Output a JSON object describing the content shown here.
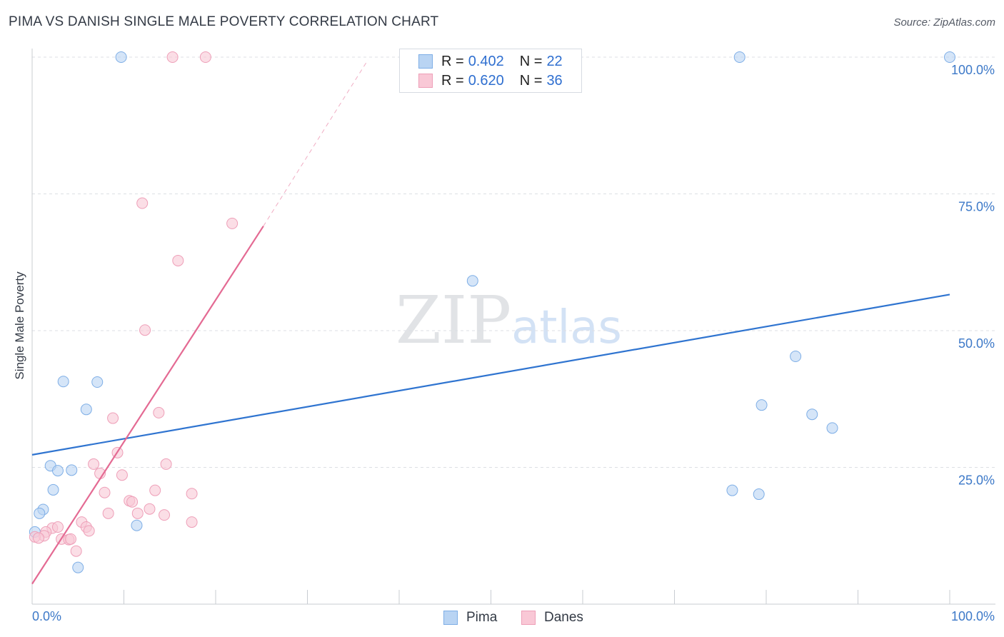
{
  "title": "PIMA VS DANISH SINGLE MALE POVERTY CORRELATION CHART",
  "source": "Source: ZipAtlas.com",
  "watermark": {
    "zip": "ZIP",
    "atlas": "atlas"
  },
  "colors": {
    "pima_fill": "#b9d4f3",
    "pima_stroke": "#7eaee6",
    "pima_line": "#2f74d0",
    "danes_fill": "#f9c8d6",
    "danes_stroke": "#ee9fb8",
    "danes_line": "#e46a93",
    "tick_label": "#3d79c8",
    "grid": "#dcdfe4"
  },
  "legend": {
    "rows": [
      {
        "r_label": "R =",
        "r_value": "0.402",
        "n_label": "N =",
        "n_value": "22"
      },
      {
        "r_label": "R =",
        "r_value": "0.620",
        "n_label": "N =",
        "n_value": "36"
      }
    ]
  },
  "bottom_legend": [
    "Pima",
    "Danes"
  ],
  "chart_data": {
    "type": "scatter",
    "title": "PIMA VS DANISH SINGLE MALE POVERTY CORRELATION CHART",
    "xlabel": "",
    "ylabel": "Single Male Poverty",
    "xlim": [
      0,
      100
    ],
    "ylim": [
      0,
      100
    ],
    "x_tick_labels": [
      "0.0%",
      "100.0%"
    ],
    "y_tick_labels": [
      "25.0%",
      "50.0%",
      "75.0%",
      "100.0%"
    ],
    "y_tick_values": [
      25,
      50,
      75,
      100
    ],
    "grid": true,
    "legend_position": "top-center",
    "series": [
      {
        "name": "Pima",
        "r": 0.402,
        "n": 22,
        "trend": {
          "x": [
            0,
            100
          ],
          "y": [
            27.3,
            56.6
          ]
        },
        "points": [
          [
            9.7,
            100
          ],
          [
            77.1,
            100
          ],
          [
            100,
            100
          ],
          [
            48.0,
            59.1
          ],
          [
            83.2,
            45.3
          ],
          [
            3.4,
            40.7
          ],
          [
            7.1,
            40.6
          ],
          [
            5.9,
            35.6
          ],
          [
            79.5,
            36.4
          ],
          [
            85.0,
            34.7
          ],
          [
            87.2,
            32.2
          ],
          [
            2.0,
            25.3
          ],
          [
            2.8,
            24.4
          ],
          [
            4.3,
            24.5
          ],
          [
            2.3,
            20.9
          ],
          [
            76.3,
            20.8
          ],
          [
            79.2,
            20.1
          ],
          [
            1.2,
            17.3
          ],
          [
            0.8,
            16.6
          ],
          [
            11.4,
            14.4
          ],
          [
            0.3,
            13.2
          ],
          [
            5.0,
            6.7
          ]
        ]
      },
      {
        "name": "Danes",
        "r": 0.62,
        "n": 36,
        "trend": {
          "x": [
            0,
            25.2
          ],
          "y": [
            3.7,
            69.1
          ],
          "dashed_to": {
            "x": 36.6,
            "y": 99.5
          }
        },
        "points": [
          [
            15.3,
            100
          ],
          [
            18.9,
            100
          ],
          [
            12.0,
            73.3
          ],
          [
            21.8,
            69.6
          ],
          [
            15.9,
            62.8
          ],
          [
            12.3,
            50.1
          ],
          [
            8.8,
            34.0
          ],
          [
            13.8,
            35.0
          ],
          [
            9.3,
            27.7
          ],
          [
            6.7,
            25.6
          ],
          [
            14.6,
            25.6
          ],
          [
            7.4,
            23.9
          ],
          [
            9.8,
            23.6
          ],
          [
            7.9,
            20.4
          ],
          [
            13.4,
            20.8
          ],
          [
            17.4,
            20.2
          ],
          [
            10.6,
            18.9
          ],
          [
            10.9,
            18.7
          ],
          [
            8.3,
            16.6
          ],
          [
            11.5,
            16.6
          ],
          [
            12.8,
            17.4
          ],
          [
            14.4,
            16.3
          ],
          [
            17.4,
            15.0
          ],
          [
            5.4,
            15.0
          ],
          [
            2.2,
            13.9
          ],
          [
            2.8,
            14.1
          ],
          [
            5.9,
            14.1
          ],
          [
            1.5,
            13.2
          ],
          [
            6.2,
            13.4
          ],
          [
            1.3,
            12.5
          ],
          [
            0.3,
            12.3
          ],
          [
            0.7,
            12.1
          ],
          [
            3.2,
            11.9
          ],
          [
            4.0,
            11.8
          ],
          [
            4.2,
            11.9
          ],
          [
            4.8,
            9.7
          ]
        ]
      }
    ]
  }
}
